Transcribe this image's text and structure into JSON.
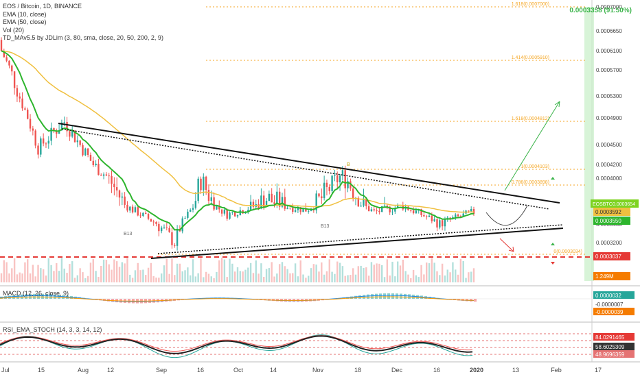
{
  "legend": {
    "symbol": "EOS / Bitcoin, 1D, BINANCE",
    "ema10": "EMA (10, close)",
    "ema50": "EMA (50, close)",
    "vol": "Vol (20)",
    "tdma": "TD_MAv5.5 by JDLim (3, 80, sma, close, 20, 50, 200, 2, 9)"
  },
  "macd_legend": "MACD (12, 26, close, 9)",
  "rsi_legend": "RSI_EMA_STOCH (14, 3, 3, 14, 12)",
  "colors": {
    "up": "#26a69a",
    "down": "#ef5350",
    "ema10": "#2db52d",
    "ema50": "#f0c040",
    "fib": "#f5a623",
    "target_green": "#3cb44b",
    "support_red": "#e53935"
  },
  "chart_data": {
    "type": "candlestick",
    "price_axis": {
      "ticks": [
        "0.0007000",
        "0.0006650",
        "0.0006100",
        "0.0005700",
        "0.0005300",
        "0.0004900",
        "0.0004500",
        "0.0004200",
        "0.0004000",
        "0.0003800",
        "0.0003400",
        "0.0003200"
      ],
      "tick_values": [
        0.0007,
        0.000665,
        0.00061,
        0.00057,
        0.00053,
        0.00049,
        0.00045,
        0.00042,
        0.0004,
        0.00038,
        0.00034,
        0.00032
      ]
    },
    "time_axis": {
      "ticks": [
        "Jul",
        "15",
        "Aug",
        "12",
        "Sep",
        "16",
        "Oct",
        "14",
        "Nov",
        "18",
        "Dec",
        "16",
        "2020",
        "13",
        "Feb",
        "17"
      ]
    },
    "price_labels": [
      {
        "text": "EOSBTC",
        "value": "0.0003654",
        "role": "last"
      },
      {
        "text": "",
        "value": "0.0003592",
        "role": "ema50"
      },
      {
        "text": "",
        "value": "0.0003550",
        "role": "ema10"
      },
      {
        "text": "",
        "value": "0.0003037",
        "role": "support"
      },
      {
        "text": "",
        "value": "1.249M",
        "role": "volume"
      }
    ],
    "target_label": "0.0003358 (91.50%)",
    "fib_labels": [
      {
        "text": "1.618(0.0007000)"
      },
      {
        "text": "1.414(0.0005910)"
      },
      {
        "text": "1.618(0.0004812)"
      },
      {
        "text": "1(0.0004103)"
      },
      {
        "text": "0.786(0.0003898)"
      },
      {
        "text": "0(0.0003034)"
      }
    ],
    "annotations": [
      {
        "text": "B",
        "kind": "pattern"
      },
      {
        "text": "B13",
        "kind": "td"
      },
      {
        "text": "B13",
        "kind": "td"
      }
    ],
    "ohlc": [
      {
        "date": "2019-07-01",
        "o": 0.00064,
        "h": 0.000655,
        "l": 0.0006,
        "c": 0.00061
      },
      {
        "date": "2019-07-15",
        "o": 0.00052,
        "h": 0.00054,
        "l": 0.00043,
        "c": 0.000445
      },
      {
        "date": "2019-07-25",
        "o": 0.00047,
        "h": 0.000495,
        "l": 0.000455,
        "c": 0.000485
      },
      {
        "date": "2019-08-05",
        "o": 0.000445,
        "h": 0.00046,
        "l": 0.00041,
        "c": 0.00042
      },
      {
        "date": "2019-08-20",
        "o": 0.000395,
        "h": 0.000405,
        "l": 0.00036,
        "c": 0.00037
      },
      {
        "date": "2019-09-05",
        "o": 0.00034,
        "h": 0.00035,
        "l": 0.00031,
        "c": 0.00032
      },
      {
        "date": "2019-09-15",
        "o": 0.00037,
        "h": 0.00041,
        "l": 0.000365,
        "c": 0.0004
      },
      {
        "date": "2019-09-25",
        "o": 0.00039,
        "h": 0.000395,
        "l": 0.00032,
        "c": 0.00036
      },
      {
        "date": "2019-10-10",
        "o": 0.000375,
        "h": 0.000395,
        "l": 0.000365,
        "c": 0.000385
      },
      {
        "date": "2019-10-25",
        "o": 0.000375,
        "h": 0.000385,
        "l": 0.000355,
        "c": 0.00037
      },
      {
        "date": "2019-11-08",
        "o": 0.000385,
        "h": 0.00042,
        "l": 0.00038,
        "c": 0.000405
      },
      {
        "date": "2019-11-20",
        "o": 0.000395,
        "h": 0.0004,
        "l": 0.00036,
        "c": 0.000365
      },
      {
        "date": "2019-12-01",
        "o": 0.000375,
        "h": 0.000385,
        "l": 0.00036,
        "c": 0.000378
      },
      {
        "date": "2019-12-15",
        "o": 0.00036,
        "h": 0.000365,
        "l": 0.000335,
        "c": 0.000342
      },
      {
        "date": "2019-12-28",
        "o": 0.000345,
        "h": 0.00037,
        "l": 0.00034,
        "c": 0.000365
      }
    ],
    "macd_values": [
      {
        "text": "0.0000032"
      },
      {
        "text": "-0.0000007"
      },
      {
        "text": "-0.0000039"
      }
    ],
    "rsi_values": [
      {
        "text": "84.0291465"
      },
      {
        "text": "58.6025309"
      },
      {
        "text": "48.9696359"
      }
    ]
  }
}
